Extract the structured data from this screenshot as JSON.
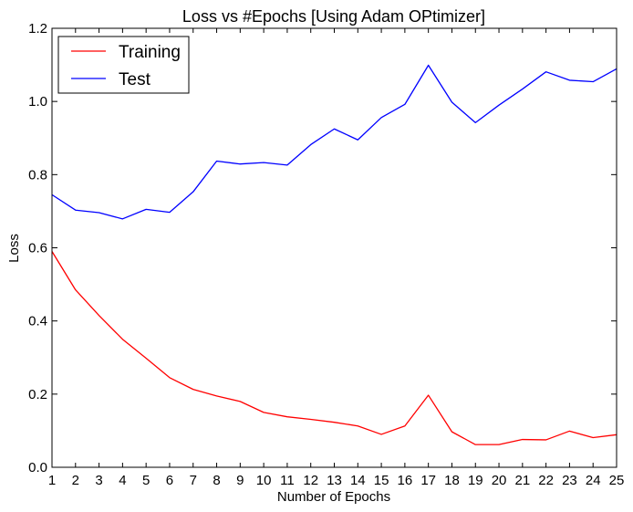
{
  "chart_data": {
    "type": "line",
    "title": "Loss vs #Epochs [Using Adam OPtimizer]",
    "xlabel": "Number of Epochs",
    "ylabel": "Loss",
    "x": [
      1,
      2,
      3,
      4,
      5,
      6,
      7,
      8,
      9,
      10,
      11,
      12,
      13,
      14,
      15,
      16,
      17,
      18,
      19,
      20,
      21,
      22,
      23,
      24,
      25
    ],
    "xlim": [
      1,
      25
    ],
    "ylim": [
      0.0,
      1.2
    ],
    "yticks": [
      "0.0",
      "0.2",
      "0.4",
      "0.6",
      "0.8",
      "1.0",
      "1.2"
    ],
    "xticks": [
      "1",
      "2",
      "3",
      "4",
      "5",
      "6",
      "7",
      "8",
      "9",
      "10",
      "11",
      "12",
      "13",
      "14",
      "15",
      "16",
      "17",
      "18",
      "19",
      "20",
      "21",
      "22",
      "23",
      "24",
      "25"
    ],
    "grid": false,
    "legend_position": "top-left",
    "series": [
      {
        "name": "Training",
        "color": "#ff0000",
        "values": [
          0.59,
          0.485,
          0.415,
          0.35,
          0.298,
          0.245,
          0.213,
          0.195,
          0.18,
          0.15,
          0.138,
          0.131,
          0.123,
          0.113,
          0.09,
          0.113,
          0.197,
          0.097,
          0.062,
          0.062,
          0.076,
          0.075,
          0.099,
          0.081,
          0.089
        ]
      },
      {
        "name": "Test",
        "color": "#0000ff",
        "values": [
          0.745,
          0.703,
          0.696,
          0.679,
          0.705,
          0.697,
          0.753,
          0.837,
          0.829,
          0.833,
          0.826,
          0.882,
          0.925,
          0.895,
          0.956,
          0.992,
          1.099,
          0.998,
          0.942,
          0.99,
          1.034,
          1.081,
          1.058,
          1.054,
          1.089
        ]
      }
    ]
  }
}
